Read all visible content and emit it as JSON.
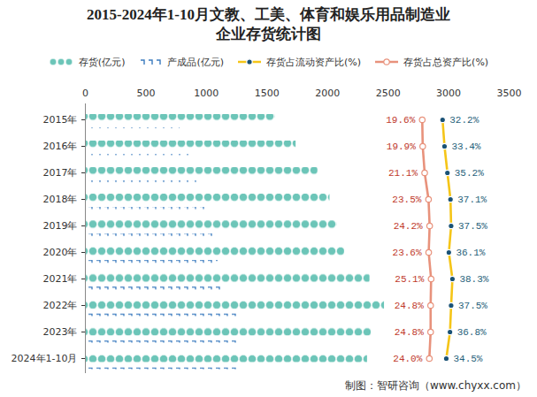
{
  "chart_data": {
    "type": "bar",
    "orientation": "horizontal",
    "title": "2015-2024年1-10月文教、工美、体育和娱乐用品制造业\n企业存货统计图",
    "caption": "制图：智研咨询（www.chyxx.com）",
    "categories": [
      "2015年",
      "2016年",
      "2017年",
      "2018年",
      "2019年",
      "2020年",
      "2021年",
      "2022年",
      "2023年",
      "2024年1-10月"
    ],
    "xlim": [
      0,
      3500
    ],
    "xticks": [
      0,
      500,
      1000,
      1500,
      2000,
      2500,
      3000,
      3500
    ],
    "x2lim": [
      0,
      40
    ],
    "legend": "top",
    "series": [
      {
        "name": "存货(亿元)",
        "type": "bar",
        "color": "#6cc5b8",
        "marker": "circle",
        "values": [
          1570,
          1740,
          1920,
          2020,
          2080,
          2140,
          2350,
          2470,
          2360,
          2330
        ]
      },
      {
        "name": "产成品(亿元)",
        "type": "bar",
        "color": "#3b7bbf",
        "marker": "dash",
        "values": [
          782,
          891,
          920,
          1000,
          1059,
          1096,
          1118,
          1271,
          1262,
          1262
        ]
      },
      {
        "name": "存货占流动资产比(%)",
        "type": "line",
        "axis": "x2",
        "color": "#f5c518",
        "marker": "circle",
        "data_labels": true,
        "values": [
          32.2,
          33.4,
          35.2,
          37.1,
          37.5,
          36.1,
          38.3,
          37.5,
          36.8,
          34.5
        ],
        "value_labels": [
          "32.2%",
          "33.4%",
          "35.2%",
          "37.1%",
          "37.5%",
          "36.1%",
          "38.3%",
          "37.5%",
          "36.8%",
          "34.5%"
        ]
      },
      {
        "name": "存货占总资产比(%)",
        "type": "line",
        "axis": "x2",
        "color": "#e8927c",
        "marker": "open_circle",
        "data_labels": true,
        "values": [
          19.6,
          19.9,
          21.1,
          23.5,
          24.2,
          23.6,
          25.1,
          24.8,
          24.8,
          24.0
        ],
        "value_labels": [
          "19.6%",
          "19.9%",
          "21.1%",
          "23.5%",
          "24.2%",
          "23.6%",
          "25.1%",
          "24.8%",
          "24.8%",
          "24.0%"
        ]
      }
    ]
  }
}
